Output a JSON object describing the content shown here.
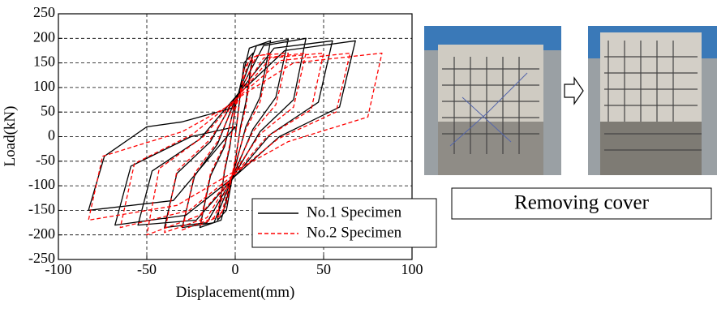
{
  "chart_data": {
    "type": "line",
    "xlabel": "Displacement(mm)",
    "ylabel": "Load(kN)",
    "xlim": [
      -100,
      100
    ],
    "xticks": [
      -100,
      -50,
      0,
      50,
      100
    ],
    "ylim": [
      -250,
      250
    ],
    "yticks": [
      -250,
      -200,
      -150,
      -100,
      -50,
      0,
      50,
      100,
      150,
      200,
      250
    ],
    "grid": true,
    "legend": "lower right",
    "annotation": "Removing cover",
    "series": [
      {
        "name": "No.1 Specimen",
        "color": "#000000",
        "dash": false,
        "x": [
          0,
          5,
          10,
          6,
          3,
          0,
          -5,
          -10,
          -6,
          -3,
          0,
          8,
          20,
          14,
          6,
          0,
          -8,
          -20,
          -14,
          -6,
          0,
          12,
          30,
          23,
          10,
          0,
          -12,
          -30,
          -23,
          -10,
          0,
          16,
          40,
          33,
          14,
          0,
          -16,
          -40,
          -33,
          -14,
          0,
          22,
          55,
          47,
          20,
          0,
          -22,
          -55,
          -47,
          -20,
          0,
          28,
          68,
          59,
          25,
          0,
          -28,
          -68,
          -59,
          -25,
          0,
          -35,
          -83,
          -74,
          -50,
          -30,
          0
        ],
        "y": [
          0,
          150,
          170,
          70,
          20,
          -50,
          -150,
          -170,
          -70,
          -20,
          60,
          180,
          195,
          80,
          20,
          -60,
          -170,
          -185,
          -80,
          -20,
          70,
          185,
          198,
          80,
          15,
          -70,
          -175,
          -185,
          -80,
          -15,
          75,
          185,
          200,
          75,
          10,
          -75,
          -175,
          -185,
          -75,
          -10,
          80,
          180,
          195,
          70,
          5,
          -80,
          -170,
          -180,
          -70,
          -5,
          80,
          175,
          195,
          60,
          0,
          -80,
          -160,
          -180,
          -60,
          0,
          20,
          -130,
          -150,
          -40,
          20,
          30,
          60
        ]
      },
      {
        "name": "No.2 Specimen",
        "color": "#ff0000",
        "dash": true,
        "x": [
          0,
          5,
          10,
          6,
          3,
          0,
          -5,
          -10,
          -6,
          -3,
          0,
          8,
          20,
          14,
          6,
          0,
          -8,
          -20,
          -14,
          -6,
          0,
          12,
          30,
          23,
          10,
          0,
          -12,
          -30,
          -23,
          -10,
          0,
          16,
          40,
          33,
          14,
          0,
          -16,
          -40,
          -33,
          -14,
          0,
          20,
          50,
          43,
          18,
          0,
          -20,
          -50,
          -43,
          -18,
          0,
          26,
          65,
          57,
          24,
          0,
          -26,
          -65,
          -57,
          -24,
          0,
          33,
          83,
          75,
          30,
          0,
          -33,
          -83,
          -75,
          -30,
          0
        ],
        "y": [
          0,
          140,
          160,
          60,
          15,
          -45,
          -140,
          -165,
          -65,
          -15,
          55,
          160,
          170,
          70,
          15,
          -55,
          -160,
          -180,
          -75,
          -15,
          65,
          165,
          170,
          65,
          10,
          -65,
          -165,
          -190,
          -75,
          -10,
          70,
          160,
          170,
          60,
          5,
          -70,
          -165,
          -195,
          -70,
          -5,
          75,
          160,
          170,
          55,
          0,
          -75,
          -160,
          -200,
          -65,
          0,
          75,
          155,
          170,
          50,
          -5,
          -75,
          -150,
          -185,
          -55,
          5,
          75,
          150,
          170,
          40,
          -10,
          -70,
          -140,
          -170,
          -40,
          10,
          70
        ]
      }
    ]
  }
}
